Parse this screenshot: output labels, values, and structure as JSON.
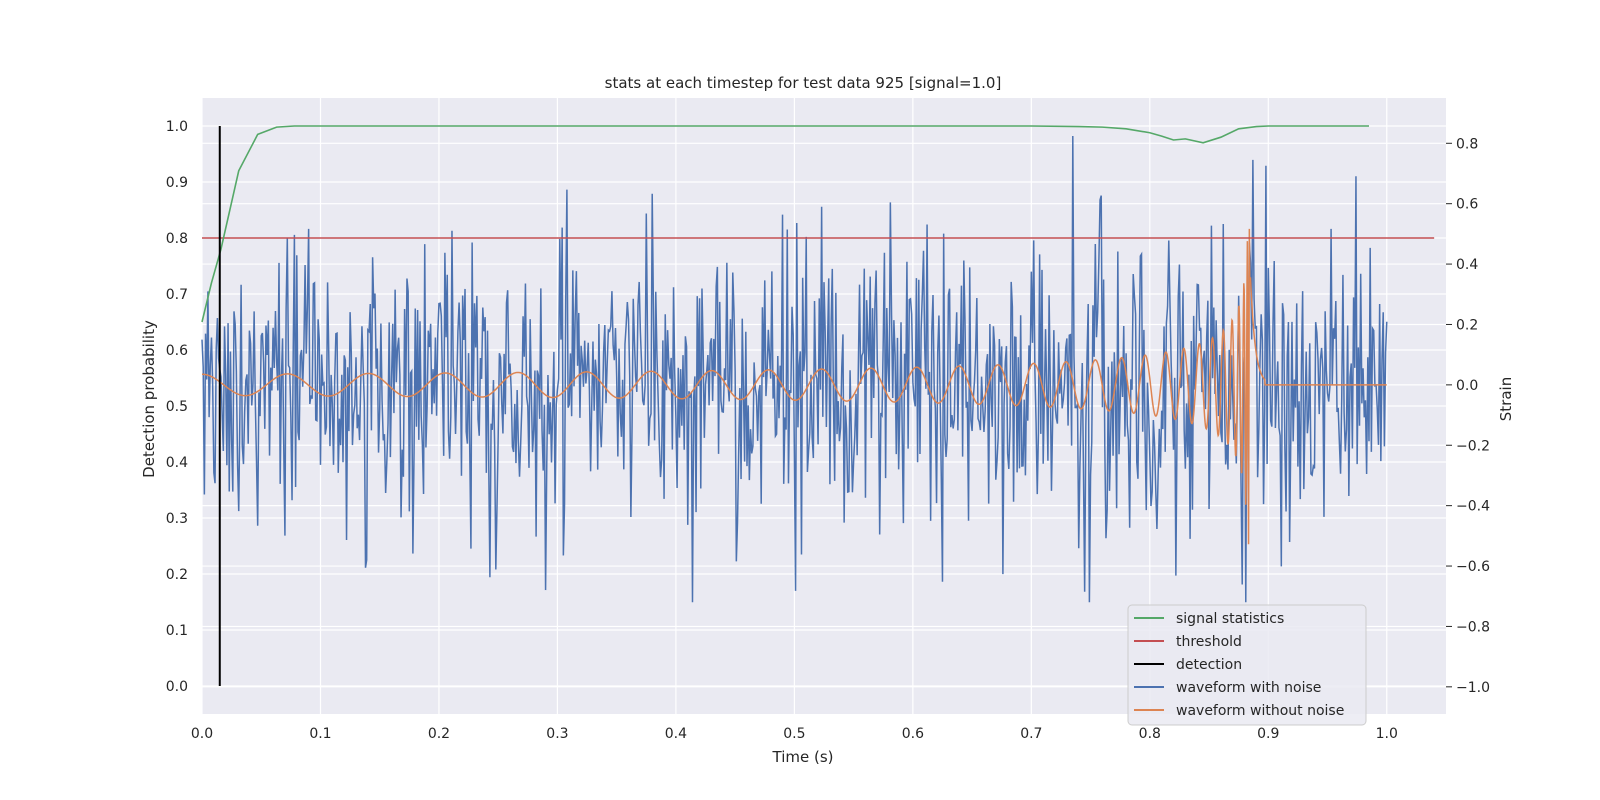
{
  "chart_data": {
    "type": "line",
    "title": "stats at each timestep for test data 925 [signal=1.0]",
    "xlabel": "Time (s)",
    "ylabel": "Detection probability",
    "y2label": "Strain",
    "xlim": [
      0.0,
      1.05
    ],
    "ylim": [
      -0.05,
      1.05
    ],
    "y2lim": [
      -1.09,
      0.95
    ],
    "xticks": [
      "0.0",
      "0.1",
      "0.2",
      "0.3",
      "0.4",
      "0.5",
      "0.6",
      "0.7",
      "0.8",
      "0.9",
      "1.0"
    ],
    "yticks": [
      "0.0",
      "0.1",
      "0.2",
      "0.3",
      "0.4",
      "0.5",
      "0.6",
      "0.7",
      "0.8",
      "0.9",
      "1.0"
    ],
    "y2ticks": [
      "−1.0",
      "−0.8",
      "−0.6",
      "−0.4",
      "−0.2",
      "0.0",
      "0.2",
      "0.4",
      "0.6",
      "0.8"
    ],
    "grid": true,
    "legend_position": "lower-right",
    "colors": {
      "background": "#eaeaf2",
      "grid": "#ffffff",
      "signal_statistics": "#55a868",
      "threshold": "#c44e52",
      "detection": "#000000",
      "waveform_with_noise": "#4c72b0",
      "waveform_without_noise": "#dd8452"
    },
    "legend": [
      {
        "label": "signal statistics",
        "color": "#55a868"
      },
      {
        "label": "threshold",
        "color": "#c44e52"
      },
      {
        "label": "detection",
        "color": "#000000"
      },
      {
        "label": "waveform with noise",
        "color": "#4c72b0"
      },
      {
        "label": "waveform without noise",
        "color": "#dd8452"
      }
    ],
    "series": [
      {
        "name": "signal statistics",
        "axis": "left",
        "x": [
          0.0,
          0.008,
          0.016,
          0.031,
          0.047,
          0.063,
          0.078,
          0.1,
          0.2,
          0.3,
          0.4,
          0.5,
          0.6,
          0.7,
          0.74,
          0.76,
          0.78,
          0.8,
          0.81,
          0.82,
          0.83,
          0.845,
          0.86,
          0.875,
          0.89,
          0.9,
          0.95,
          0.985
        ],
        "y": [
          0.65,
          0.72,
          0.78,
          0.92,
          0.985,
          0.998,
          1.0,
          1.0,
          1.0,
          1.0,
          1.0,
          1.0,
          1.0,
          1.0,
          0.999,
          0.998,
          0.995,
          0.988,
          0.982,
          0.975,
          0.977,
          0.97,
          0.98,
          0.995,
          0.999,
          1.0,
          1.0,
          1.0
        ]
      },
      {
        "name": "threshold",
        "axis": "left",
        "x": [
          0.0,
          1.04
        ],
        "y": [
          0.8,
          0.8
        ]
      },
      {
        "name": "detection",
        "axis": "left",
        "x": [
          0.015,
          0.015
        ],
        "y": [
          0.0,
          1.0
        ]
      },
      {
        "name": "waveform with noise",
        "axis": "right",
        "x_range": [
          0.0,
          1.0
        ],
        "approx_std": 0.24,
        "approx_range": [
          -0.72,
          0.86
        ]
      },
      {
        "name": "waveform without noise",
        "axis": "right",
        "x_range": [
          0.0,
          1.0
        ],
        "approx_amplitude_start": 0.035,
        "approx_peak": 0.53,
        "merger_time": 0.885,
        "approx_range": [
          -0.61,
          0.53
        ]
      }
    ]
  }
}
